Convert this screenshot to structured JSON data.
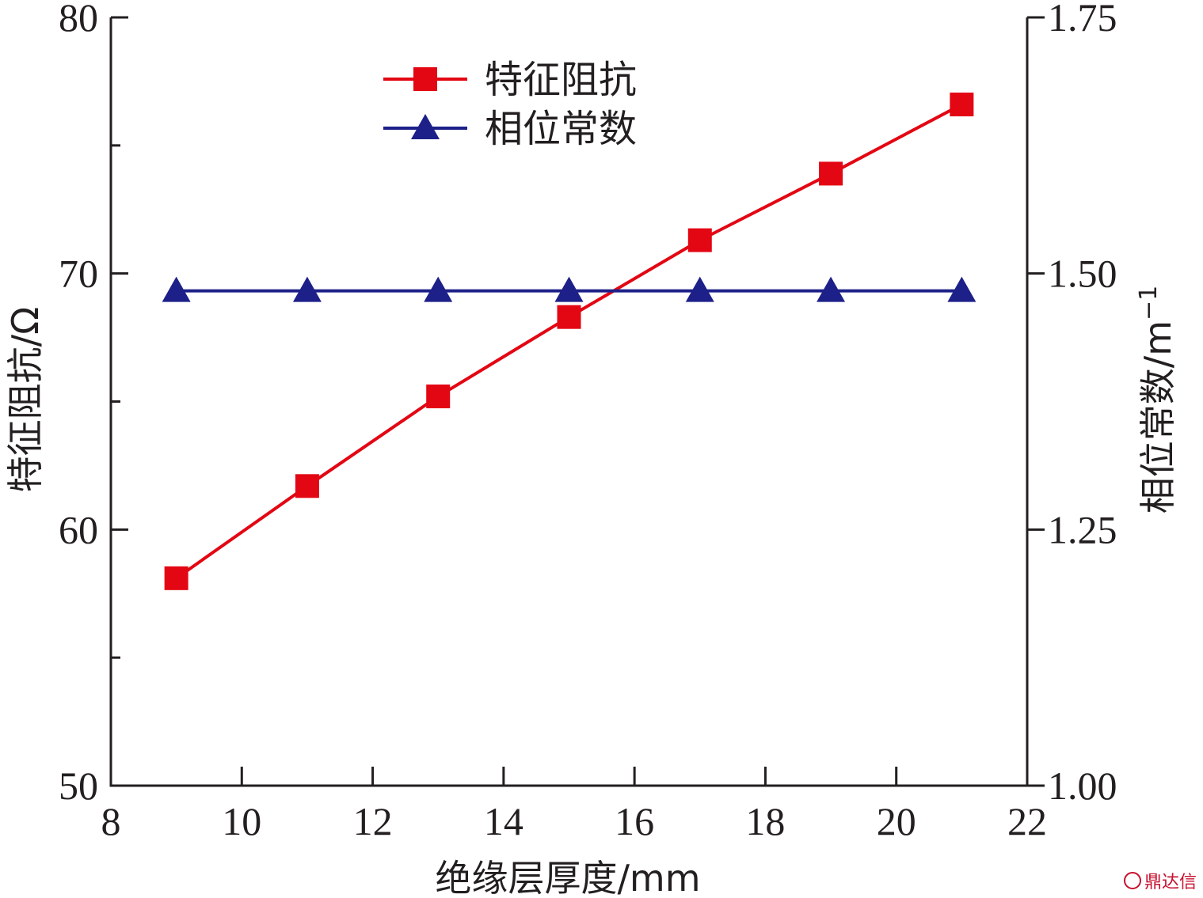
{
  "chart_data": {
    "type": "line",
    "title": "",
    "xlabel": "绝缘层厚度/mm",
    "ylabel_left": "特征阻抗/Ω",
    "ylabel_right_base": "相位常数/m",
    "ylabel_right_sup": "−1",
    "xlim": [
      8,
      22
    ],
    "ylim_left": [
      50,
      80
    ],
    "ylim_right": [
      1.0,
      1.75
    ],
    "x_ticks": [
      "8",
      "10",
      "12",
      "14",
      "16",
      "18",
      "20",
      "22"
    ],
    "x_tick_values": [
      8,
      10,
      12,
      14,
      16,
      18,
      20,
      22
    ],
    "y_left_ticks": [
      "50",
      "60",
      "70",
      "80"
    ],
    "y_left_tick_values": [
      50,
      60,
      70,
      80
    ],
    "y_right_ticks": [
      "1.00",
      "1.25",
      "1.50",
      "1.75"
    ],
    "y_right_tick_values": [
      1.0,
      1.25,
      1.5,
      1.75
    ],
    "grid": false,
    "legend_position": "top-center",
    "x": [
      9,
      11,
      13,
      15,
      17,
      19,
      21
    ],
    "series": [
      {
        "name": "特征阻抗",
        "axis": "left",
        "marker": "square",
        "color": "#e30613",
        "values": [
          58.1,
          61.7,
          65.2,
          68.3,
          71.3,
          73.9,
          76.6
        ]
      },
      {
        "name": "相位常数",
        "axis": "right",
        "marker": "triangle",
        "color": "#1d2088",
        "values": [
          1.483,
          1.483,
          1.483,
          1.483,
          1.483,
          1.483,
          1.483
        ]
      }
    ]
  },
  "watermark": {
    "text": "鼎达信"
  }
}
